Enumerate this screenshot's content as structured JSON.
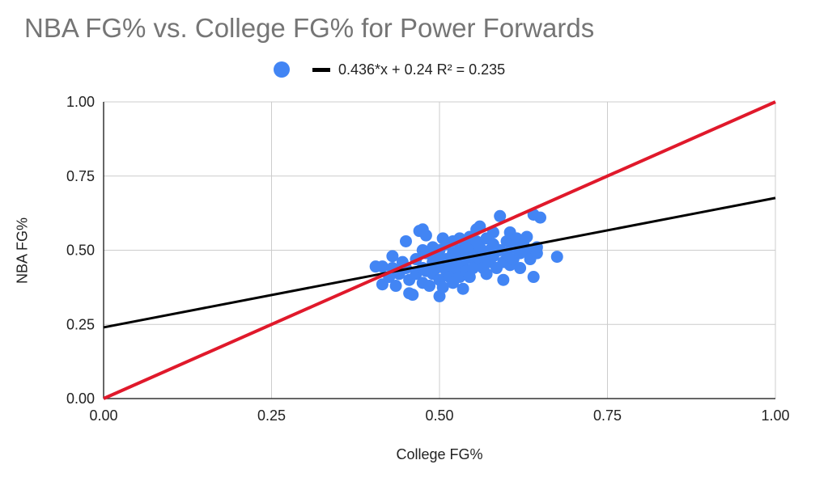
{
  "chart_data": {
    "type": "scatter",
    "title": "NBA FG% vs. College FG% for Power Forwards",
    "xlabel": "College FG%",
    "ylabel": "NBA FG%",
    "xlim": [
      0,
      1
    ],
    "ylim": [
      0,
      1
    ],
    "x_ticks": [
      "0.00",
      "0.25",
      "0.50",
      "0.75",
      "1.00"
    ],
    "y_ticks": [
      "0.00",
      "0.25",
      "0.50",
      "0.75",
      "1.00"
    ],
    "grid": true,
    "legend_position": "top",
    "trendline": {
      "label": "0.436*x + 0.24 R² = 0.235",
      "slope": 0.436,
      "intercept": 0.24,
      "color": "#000000"
    },
    "reference_line": {
      "from": [
        0,
        0
      ],
      "to": [
        1,
        1
      ],
      "color": "#e0192b"
    },
    "point_color": "#4285f4",
    "points": [
      [
        0.405,
        0.445
      ],
      [
        0.415,
        0.445
      ],
      [
        0.415,
        0.385
      ],
      [
        0.425,
        0.41
      ],
      [
        0.43,
        0.48
      ],
      [
        0.43,
        0.44
      ],
      [
        0.435,
        0.38
      ],
      [
        0.44,
        0.42
      ],
      [
        0.445,
        0.46
      ],
      [
        0.45,
        0.53
      ],
      [
        0.45,
        0.44
      ],
      [
        0.455,
        0.355
      ],
      [
        0.455,
        0.4
      ],
      [
        0.46,
        0.35
      ],
      [
        0.465,
        0.47
      ],
      [
        0.465,
        0.42
      ],
      [
        0.47,
        0.565
      ],
      [
        0.475,
        0.57
      ],
      [
        0.475,
        0.5
      ],
      [
        0.475,
        0.44
      ],
      [
        0.475,
        0.39
      ],
      [
        0.48,
        0.55
      ],
      [
        0.48,
        0.49
      ],
      [
        0.48,
        0.43
      ],
      [
        0.485,
        0.38
      ],
      [
        0.49,
        0.51
      ],
      [
        0.49,
        0.46
      ],
      [
        0.49,
        0.42
      ],
      [
        0.495,
        0.48
      ],
      [
        0.495,
        0.44
      ],
      [
        0.5,
        0.345
      ],
      [
        0.5,
        0.4
      ],
      [
        0.5,
        0.46
      ],
      [
        0.5,
        0.5
      ],
      [
        0.505,
        0.54
      ],
      [
        0.505,
        0.375
      ],
      [
        0.51,
        0.43
      ],
      [
        0.51,
        0.47
      ],
      [
        0.51,
        0.52
      ],
      [
        0.515,
        0.41
      ],
      [
        0.515,
        0.45
      ],
      [
        0.52,
        0.49
      ],
      [
        0.52,
        0.53
      ],
      [
        0.52,
        0.39
      ],
      [
        0.525,
        0.44
      ],
      [
        0.525,
        0.47
      ],
      [
        0.53,
        0.5
      ],
      [
        0.53,
        0.54
      ],
      [
        0.53,
        0.41
      ],
      [
        0.535,
        0.37
      ],
      [
        0.535,
        0.46
      ],
      [
        0.54,
        0.49
      ],
      [
        0.54,
        0.43
      ],
      [
        0.54,
        0.52
      ],
      [
        0.545,
        0.545
      ],
      [
        0.545,
        0.41
      ],
      [
        0.55,
        0.47
      ],
      [
        0.55,
        0.5
      ],
      [
        0.55,
        0.44
      ],
      [
        0.555,
        0.57
      ],
      [
        0.555,
        0.53
      ],
      [
        0.56,
        0.58
      ],
      [
        0.56,
        0.47
      ],
      [
        0.56,
        0.51
      ],
      [
        0.565,
        0.44
      ],
      [
        0.565,
        0.49
      ],
      [
        0.57,
        0.42
      ],
      [
        0.57,
        0.54
      ],
      [
        0.575,
        0.5
      ],
      [
        0.575,
        0.46
      ],
      [
        0.58,
        0.56
      ],
      [
        0.58,
        0.52
      ],
      [
        0.58,
        0.48
      ],
      [
        0.585,
        0.44
      ],
      [
        0.59,
        0.615
      ],
      [
        0.59,
        0.5
      ],
      [
        0.595,
        0.4
      ],
      [
        0.595,
        0.46
      ],
      [
        0.6,
        0.53
      ],
      [
        0.6,
        0.49
      ],
      [
        0.605,
        0.56
      ],
      [
        0.605,
        0.45
      ],
      [
        0.61,
        0.51
      ],
      [
        0.61,
        0.47
      ],
      [
        0.615,
        0.54
      ],
      [
        0.62,
        0.49
      ],
      [
        0.62,
        0.44
      ],
      [
        0.625,
        0.52
      ],
      [
        0.63,
        0.5
      ],
      [
        0.63,
        0.545
      ],
      [
        0.635,
        0.47
      ],
      [
        0.64,
        0.41
      ],
      [
        0.64,
        0.62
      ],
      [
        0.645,
        0.49
      ],
      [
        0.645,
        0.51
      ],
      [
        0.65,
        0.61
      ],
      [
        0.675,
        0.478
      ]
    ]
  }
}
